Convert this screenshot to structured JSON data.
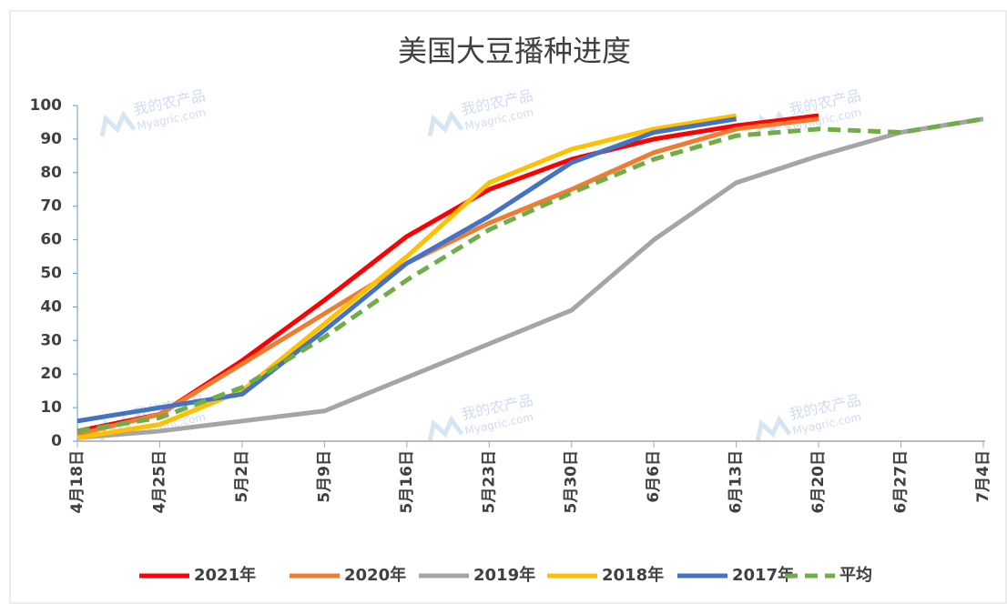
{
  "chart_data": {
    "type": "line",
    "title": "美国大豆播种进度",
    "categories": [
      "4月18日",
      "4月25日",
      "5月2日",
      "5月9日",
      "5月16日",
      "5月23日",
      "5月30日",
      "6月6日",
      "6月13日",
      "6月20日",
      "6月27日",
      "7月4日"
    ],
    "series": [
      {
        "name": "2021年",
        "color": "#ff0000",
        "values": [
          3,
          8,
          24,
          42,
          61,
          75,
          84,
          90,
          94,
          97,
          null,
          null
        ]
      },
      {
        "name": "2020年",
        "color": "#ed7d31",
        "values": [
          2,
          8,
          23,
          38,
          53,
          65,
          75,
          86,
          93,
          96,
          null,
          null
        ]
      },
      {
        "name": "2019年",
        "color": "#a5a5a5",
        "values": [
          1,
          3,
          6,
          9,
          19,
          29,
          39,
          60,
          77,
          85,
          92,
          96
        ]
      },
      {
        "name": "2018年",
        "color": "#ffc000",
        "values": [
          1,
          5,
          15,
          35,
          55,
          77,
          87,
          93,
          97,
          null,
          null,
          null
        ]
      },
      {
        "name": "2017年",
        "color": "#4472c4",
        "values": [
          6,
          10,
          14,
          33,
          53,
          67,
          83,
          92,
          96,
          null,
          null,
          null
        ]
      },
      {
        "name": "平均",
        "color": "#70ad47",
        "dashed": true,
        "values": [
          3,
          7,
          16,
          31,
          48,
          63,
          74,
          84,
          91,
          93,
          92,
          96
        ]
      }
    ],
    "ylim": [
      0,
      100
    ],
    "yticks": [
      0,
      10,
      20,
      30,
      40,
      50,
      60,
      70,
      80,
      90,
      100
    ],
    "legend": "bottom",
    "watermark": [
      "我的农产品",
      "Myagric.com"
    ]
  }
}
